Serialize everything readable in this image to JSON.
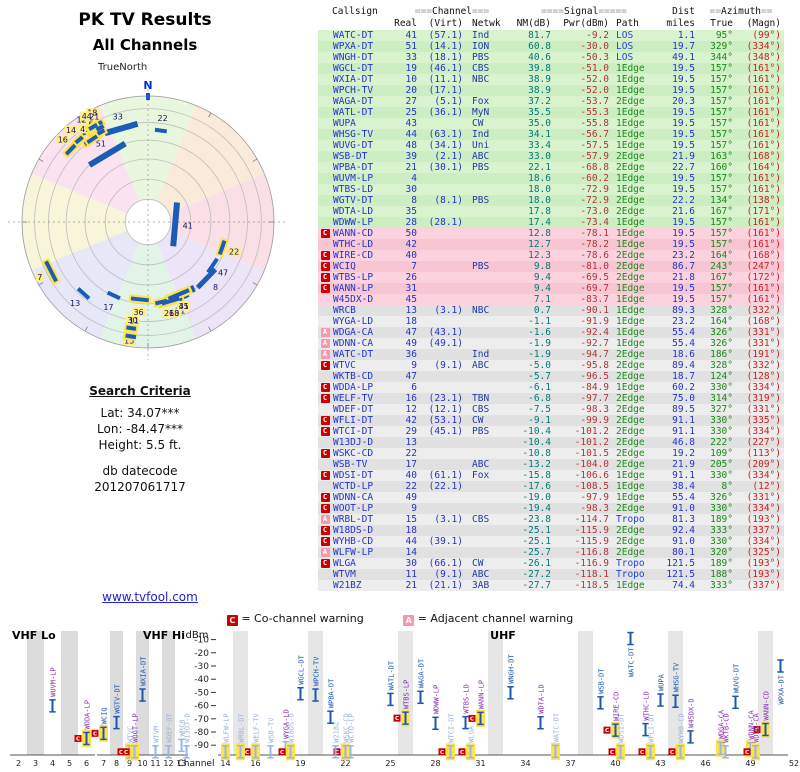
{
  "app": {
    "title_line1": "PK TV Results",
    "title_line2": "All Channels",
    "truenorth_label": "TrueNorth",
    "link": "www.tvfool.com"
  },
  "radar": {
    "north_label": "N"
  },
  "search_criteria": {
    "heading": "Search Criteria",
    "lat": "Lat: 34.07***",
    "lon": "Lon: -84.47***",
    "height": "Height: 5.5 ft.",
    "datecode_label": "db datecode",
    "datecode": "201207061717"
  },
  "legend": {
    "co_symbol": "C",
    "co_text": "= Co-channel warning",
    "adj_symbol": "A",
    "adj_text": "= Adjacent channel warning"
  },
  "table": {
    "header": {
      "callsign": "Callsign",
      "ch_deco_l": "===",
      "channel_label": "Channel",
      "ch_deco_r": "===",
      "real": "Real",
      "virt": "(Virt)",
      "netwk": "Netwk",
      "sig_deco_l": "====",
      "signal_label": "Signal",
      "sig_deco_r": "=====",
      "nm": "NM(dB)",
      "pwr": "Pwr(dBm)",
      "path": "Path",
      "dist_line1": "Dist",
      "dist_line2": "miles",
      "az_deco_l": "==",
      "azimuth_label": "Azimuth",
      "az_deco_r": "==",
      "true": "True",
      "magn": "(Magn)"
    },
    "rows": [
      {
        "cs": "WATC-DT",
        "re": "41",
        "vi": "(57.1)",
        "nw": "Ind",
        "nm": "81.7",
        "pw": "-9.2",
        "pa": "LOS",
        "di": "1.1",
        "tr": "95°",
        "mg": "(99°)",
        "w": ""
      },
      {
        "cs": "WPXA-DT",
        "re": "51",
        "vi": "(14.1)",
        "nw": "ION",
        "nm": "60.8",
        "pw": "-30.0",
        "pa": "LOS",
        "di": "19.7",
        "tr": "329°",
        "mg": "(334°)",
        "w": ""
      },
      {
        "cs": "WNGH-DT",
        "re": "33",
        "vi": "(18.1)",
        "nw": "PBS",
        "nm": "40.6",
        "pw": "-50.3",
        "pa": "LOS",
        "di": "49.1",
        "tr": "344°",
        "mg": "(348°)",
        "w": ""
      },
      {
        "cs": "WGCL-DT",
        "re": "19",
        "vi": "(46.1)",
        "nw": "CBS",
        "nm": "39.8",
        "pw": "-51.0",
        "pa": "1Edge",
        "di": "19.5",
        "tr": "157°",
        "mg": "(161°)",
        "w": ""
      },
      {
        "cs": "WXIA-DT",
        "re": "10",
        "vi": "(11.1)",
        "nw": "NBC",
        "nm": "38.9",
        "pw": "-52.0",
        "pa": "1Edge",
        "di": "19.5",
        "tr": "157°",
        "mg": "(161°)",
        "w": ""
      },
      {
        "cs": "WPCH-TV",
        "re": "20",
        "vi": "(17.1)",
        "nw": "",
        "nm": "38.9",
        "pw": "-52.0",
        "pa": "1Edge",
        "di": "19.5",
        "tr": "157°",
        "mg": "(161°)",
        "w": ""
      },
      {
        "cs": "WAGA-DT",
        "re": "27",
        "vi": "(5.1)",
        "nw": "Fox",
        "nm": "37.2",
        "pw": "-53.7",
        "pa": "2Edge",
        "di": "20.3",
        "tr": "157°",
        "mg": "(161°)",
        "w": ""
      },
      {
        "cs": "WATL-DT",
        "re": "25",
        "vi": "(36.1)",
        "nw": "MyN",
        "nm": "35.5",
        "pw": "-55.3",
        "pa": "1Edge",
        "di": "19.5",
        "tr": "157°",
        "mg": "(161°)",
        "w": ""
      },
      {
        "cs": "WUPA",
        "re": "43",
        "vi": "",
        "nw": "CW",
        "nm": "35.0",
        "pw": "-55.8",
        "pa": "1Edge",
        "di": "19.5",
        "tr": "157°",
        "mg": "(161°)",
        "w": ""
      },
      {
        "cs": "WHSG-TV",
        "re": "44",
        "vi": "(63.1)",
        "nw": "Ind",
        "nm": "34.1",
        "pw": "-56.7",
        "pa": "1Edge",
        "di": "19.5",
        "tr": "157°",
        "mg": "(161°)",
        "w": ""
      },
      {
        "cs": "WUVG-DT",
        "re": "48",
        "vi": "(34.1)",
        "nw": "Uni",
        "nm": "33.4",
        "pw": "-57.5",
        "pa": "1Edge",
        "di": "19.5",
        "tr": "157°",
        "mg": "(161°)",
        "w": ""
      },
      {
        "cs": "WSB-DT",
        "re": "39",
        "vi": "(2.1)",
        "nw": "ABC",
        "nm": "33.0",
        "pw": "-57.9",
        "pa": "2Edge",
        "di": "21.9",
        "tr": "163°",
        "mg": "(168°)",
        "w": ""
      },
      {
        "cs": "WPBA-DT",
        "re": "21",
        "vi": "(30.1)",
        "nw": "PBS",
        "nm": "22.1",
        "pw": "-68.8",
        "pa": "2Edge",
        "di": "22.7",
        "tr": "160°",
        "mg": "(164°)",
        "w": ""
      },
      {
        "cs": "WUVM-LP",
        "re": "4",
        "vi": "",
        "nw": "",
        "nm": "18.6",
        "pw": "-60.2",
        "pa": "1Edge",
        "di": "19.5",
        "tr": "157°",
        "mg": "(161°)",
        "w": ""
      },
      {
        "cs": "WTBS-LD",
        "re": "30",
        "vi": "",
        "nw": "",
        "nm": "18.0",
        "pw": "-72.9",
        "pa": "1Edge",
        "di": "19.5",
        "tr": "157°",
        "mg": "(161°)",
        "w": ""
      },
      {
        "cs": "WGTV-DT",
        "re": "8",
        "vi": "(8.1)",
        "nw": "PBS",
        "nm": "18.0",
        "pw": "-72.9",
        "pa": "2Edge",
        "di": "22.2",
        "tr": "134°",
        "mg": "(138°)",
        "w": ""
      },
      {
        "cs": "WDTA-LD",
        "re": "35",
        "vi": "",
        "nw": "",
        "nm": "17.8",
        "pw": "-73.0",
        "pa": "2Edge",
        "di": "21.6",
        "tr": "167°",
        "mg": "(171°)",
        "w": ""
      },
      {
        "cs": "WDWW-LP",
        "re": "28",
        "vi": "(28.1)",
        "nw": "",
        "nm": "17.4",
        "pw": "-73.4",
        "pa": "1Edge",
        "di": "19.5",
        "tr": "157°",
        "mg": "(161°)",
        "w": ""
      },
      {
        "cs": "WANN-CD",
        "re": "50",
        "vi": "",
        "nw": "",
        "nm": "12.8",
        "pw": "-78.1",
        "pa": "1Edge",
        "di": "19.5",
        "tr": "157°",
        "mg": "(161°)",
        "w": "co"
      },
      {
        "cs": "WTHC-LD",
        "re": "42",
        "vi": "",
        "nw": "",
        "nm": "12.7",
        "pw": "-78.2",
        "pa": "1Edge",
        "di": "19.5",
        "tr": "157°",
        "mg": "(161°)",
        "w": ""
      },
      {
        "cs": "WIRE-CD",
        "re": "40",
        "vi": "",
        "nw": "",
        "nm": "12.3",
        "pw": "-78.6",
        "pa": "2Edge",
        "di": "23.2",
        "tr": "164°",
        "mg": "(168°)",
        "w": "co"
      },
      {
        "cs": "WCIQ",
        "re": "7",
        "vi": "",
        "nw": "PBS",
        "nm": "9.8",
        "pw": "-81.0",
        "pa": "2Edge",
        "di": "86.7",
        "tr": "243°",
        "mg": "(247°)",
        "w": "co"
      },
      {
        "cs": "WTBS-LP",
        "re": "26",
        "vi": "",
        "nw": "",
        "nm": "9.4",
        "pw": "-69.5",
        "pa": "2Edge",
        "di": "21.8",
        "tr": "167°",
        "mg": "(172°)",
        "w": "co"
      },
      {
        "cs": "WANN-LP",
        "re": "31",
        "vi": "",
        "nw": "",
        "nm": "9.4",
        "pw": "-69.7",
        "pa": "1Edge",
        "di": "19.5",
        "tr": "157°",
        "mg": "(161°)",
        "w": "co"
      },
      {
        "cs": "W45DX-D",
        "re": "45",
        "vi": "",
        "nw": "",
        "nm": "7.1",
        "pw": "-83.7",
        "pa": "1Edge",
        "di": "19.5",
        "tr": "157°",
        "mg": "(161°)",
        "w": ""
      },
      {
        "cs": "WRCB",
        "re": "13",
        "vi": "(3.1)",
        "nw": "NBC",
        "nm": "0.7",
        "pw": "-90.1",
        "pa": "1Edge",
        "di": "89.3",
        "tr": "328°",
        "mg": "(332°)",
        "w": ""
      },
      {
        "cs": "WYGA-LD",
        "re": "18",
        "vi": "",
        "nw": "",
        "nm": "-1.1",
        "pw": "-91.9",
        "pa": "1Edge",
        "di": "23.2",
        "tr": "164°",
        "mg": "(168°)",
        "w": ""
      },
      {
        "cs": "WDGA-CA",
        "re": "47",
        "vi": "(43.1)",
        "nw": "",
        "nm": "-1.6",
        "pw": "-92.4",
        "pa": "1Edge",
        "di": "55.4",
        "tr": "326°",
        "mg": "(331°)",
        "w": "adj"
      },
      {
        "cs": "WDNN-CA",
        "re": "49",
        "vi": "(49.1)",
        "nw": "",
        "nm": "-1.9",
        "pw": "-92.7",
        "pa": "1Edge",
        "di": "55.4",
        "tr": "326°",
        "mg": "(331°)",
        "w": "adj"
      },
      {
        "cs": "WATC-DT",
        "re": "36",
        "vi": "",
        "nw": "Ind",
        "nm": "-1.9",
        "pw": "-94.7",
        "pa": "2Edge",
        "di": "18.6",
        "tr": "186°",
        "mg": "(191°)",
        "w": "adj"
      },
      {
        "cs": "WTVC",
        "re": "9",
        "vi": "(9.1)",
        "nw": "ABC",
        "nm": "-5.0",
        "pw": "-95.8",
        "pa": "2Edge",
        "di": "89.4",
        "tr": "328°",
        "mg": "(332°)",
        "w": "co"
      },
      {
        "cs": "WKTB-CD",
        "re": "47",
        "vi": "",
        "nw": "",
        "nm": "-5.7",
        "pw": "-96.5",
        "pa": "2Edge",
        "di": "18.7",
        "tr": "124°",
        "mg": "(128°)",
        "w": ""
      },
      {
        "cs": "WDDA-LP",
        "re": "6",
        "vi": "",
        "nw": "",
        "nm": "-6.1",
        "pw": "-84.9",
        "pa": "1Edge",
        "di": "60.2",
        "tr": "330°",
        "mg": "(334°)",
        "w": "co"
      },
      {
        "cs": "WELF-TV",
        "re": "16",
        "vi": "(23.1)",
        "nw": "TBN",
        "nm": "-6.8",
        "pw": "-97.7",
        "pa": "2Edge",
        "di": "75.0",
        "tr": "314°",
        "mg": "(319°)",
        "w": "co"
      },
      {
        "cs": "WDEF-DT",
        "re": "12",
        "vi": "(12.1)",
        "nw": "CBS",
        "nm": "-7.5",
        "pw": "-98.3",
        "pa": "2Edge",
        "di": "89.5",
        "tr": "327°",
        "mg": "(331°)",
        "w": ""
      },
      {
        "cs": "WFLI-DT",
        "re": "42",
        "vi": "(53.1)",
        "nw": "CW",
        "nm": "-9.1",
        "pw": "-99.9",
        "pa": "2Edge",
        "di": "91.1",
        "tr": "330°",
        "mg": "(335°)",
        "w": "co"
      },
      {
        "cs": "WTCI-DT",
        "re": "29",
        "vi": "(45.1)",
        "nw": "PBS",
        "nm": "-10.4",
        "pw": "-101.2",
        "pa": "2Edge",
        "di": "91.1",
        "tr": "330°",
        "mg": "(334°)",
        "w": "co"
      },
      {
        "cs": "W13DJ-D",
        "re": "13",
        "vi": "",
        "nw": "",
        "nm": "-10.4",
        "pw": "-101.2",
        "pa": "2Edge",
        "di": "46.8",
        "tr": "222°",
        "mg": "(227°)",
        "w": ""
      },
      {
        "cs": "WSKC-CD",
        "re": "22",
        "vi": "",
        "nw": "",
        "nm": "-10.8",
        "pw": "-101.5",
        "pa": "2Edge",
        "di": "19.2",
        "tr": "109°",
        "mg": "(113°)",
        "w": "co"
      },
      {
        "cs": "WSB-TV",
        "re": "17",
        "vi": "",
        "nw": "ABC",
        "nm": "-13.2",
        "pw": "-104.0",
        "pa": "2Edge",
        "di": "21.9",
        "tr": "205°",
        "mg": "(209°)",
        "w": ""
      },
      {
        "cs": "WDSI-DT",
        "re": "40",
        "vi": "(61.1)",
        "nw": "Fox",
        "nm": "-15.8",
        "pw": "-106.6",
        "pa": "1Edge",
        "di": "91.1",
        "tr": "330°",
        "mg": "(334°)",
        "w": "co"
      },
      {
        "cs": "WCTD-LP",
        "re": "22",
        "vi": "(22.1)",
        "nw": "",
        "nm": "-17.6",
        "pw": "-108.5",
        "pa": "1Edge",
        "di": "38.4",
        "tr": "8°",
        "mg": "(12°)",
        "w": ""
      },
      {
        "cs": "WDNN-CA",
        "re": "49",
        "vi": "",
        "nw": "",
        "nm": "-19.0",
        "pw": "-97.9",
        "pa": "1Edge",
        "di": "55.4",
        "tr": "326°",
        "mg": "(331°)",
        "w": "co"
      },
      {
        "cs": "WOOT-LP",
        "re": "9",
        "vi": "",
        "nw": "",
        "nm": "-19.4",
        "pw": "-98.3",
        "pa": "2Edge",
        "di": "91.0",
        "tr": "330°",
        "mg": "(334°)",
        "w": "co"
      },
      {
        "cs": "WRBL-DT",
        "re": "15",
        "vi": "(3.1)",
        "nw": "CBS",
        "nm": "-23.8",
        "pw": "-114.7",
        "pa": "Tropo",
        "di": "81.3",
        "tr": "189°",
        "mg": "(193°)",
        "w": "adj"
      },
      {
        "cs": "W18DS-D",
        "re": "18",
        "vi": "",
        "nw": "",
        "nm": "-25.1",
        "pw": "-115.9",
        "pa": "2Edge",
        "di": "92.4",
        "tr": "333°",
        "mg": "(337°)",
        "w": "co"
      },
      {
        "cs": "WYHB-CD",
        "re": "44",
        "vi": "(39.1)",
        "nw": "",
        "nm": "-25.1",
        "pw": "-115.9",
        "pa": "2Edge",
        "di": "91.0",
        "tr": "330°",
        "mg": "(334°)",
        "w": "co"
      },
      {
        "cs": "WLFW-LP",
        "re": "14",
        "vi": "",
        "nw": "",
        "nm": "-25.7",
        "pw": "-116.8",
        "pa": "2Edge",
        "di": "80.1",
        "tr": "320°",
        "mg": "(325°)",
        "w": "adj"
      },
      {
        "cs": "WLGA",
        "re": "30",
        "vi": "(66.1)",
        "nw": "CW",
        "nm": "-26.1",
        "pw": "-116.9",
        "pa": "Tropo",
        "di": "121.5",
        "tr": "189°",
        "mg": "(193°)",
        "w": "co"
      },
      {
        "cs": "WTVM",
        "re": "11",
        "vi": "(9.1)",
        "nw": "ABC",
        "nm": "-27.2",
        "pw": "-118.1",
        "pa": "Tropo",
        "di": "121.5",
        "tr": "188°",
        "mg": "(193°)",
        "w": ""
      },
      {
        "cs": "W21BZ",
        "re": "21",
        "vi": "(21.1)",
        "nw": "3AB",
        "nm": "-27.7",
        "pw": "-118.5",
        "pa": "1Edge",
        "di": "74.4",
        "tr": "333°",
        "mg": "(337°)",
        "w": ""
      }
    ]
  },
  "bottom_chart": {
    "dbm_label": "dBm",
    "channel_label": "Channel",
    "band_labels": [
      "VHF Lo",
      "VHF Hi",
      "UHF"
    ],
    "y_ticks": [
      -10,
      -20,
      -30,
      -40,
      -50,
      -60,
      -70,
      -80,
      -90
    ],
    "vhf_lo_ticks": [
      2,
      3,
      4,
      5,
      6
    ],
    "vhf_hi_ticks": [
      7,
      8,
      9,
      10,
      11,
      12,
      13
    ],
    "uhf_ticks": [
      14,
      16,
      19,
      22,
      25,
      28,
      31,
      34,
      37,
      40,
      43,
      46,
      49,
      52
    ]
  }
}
